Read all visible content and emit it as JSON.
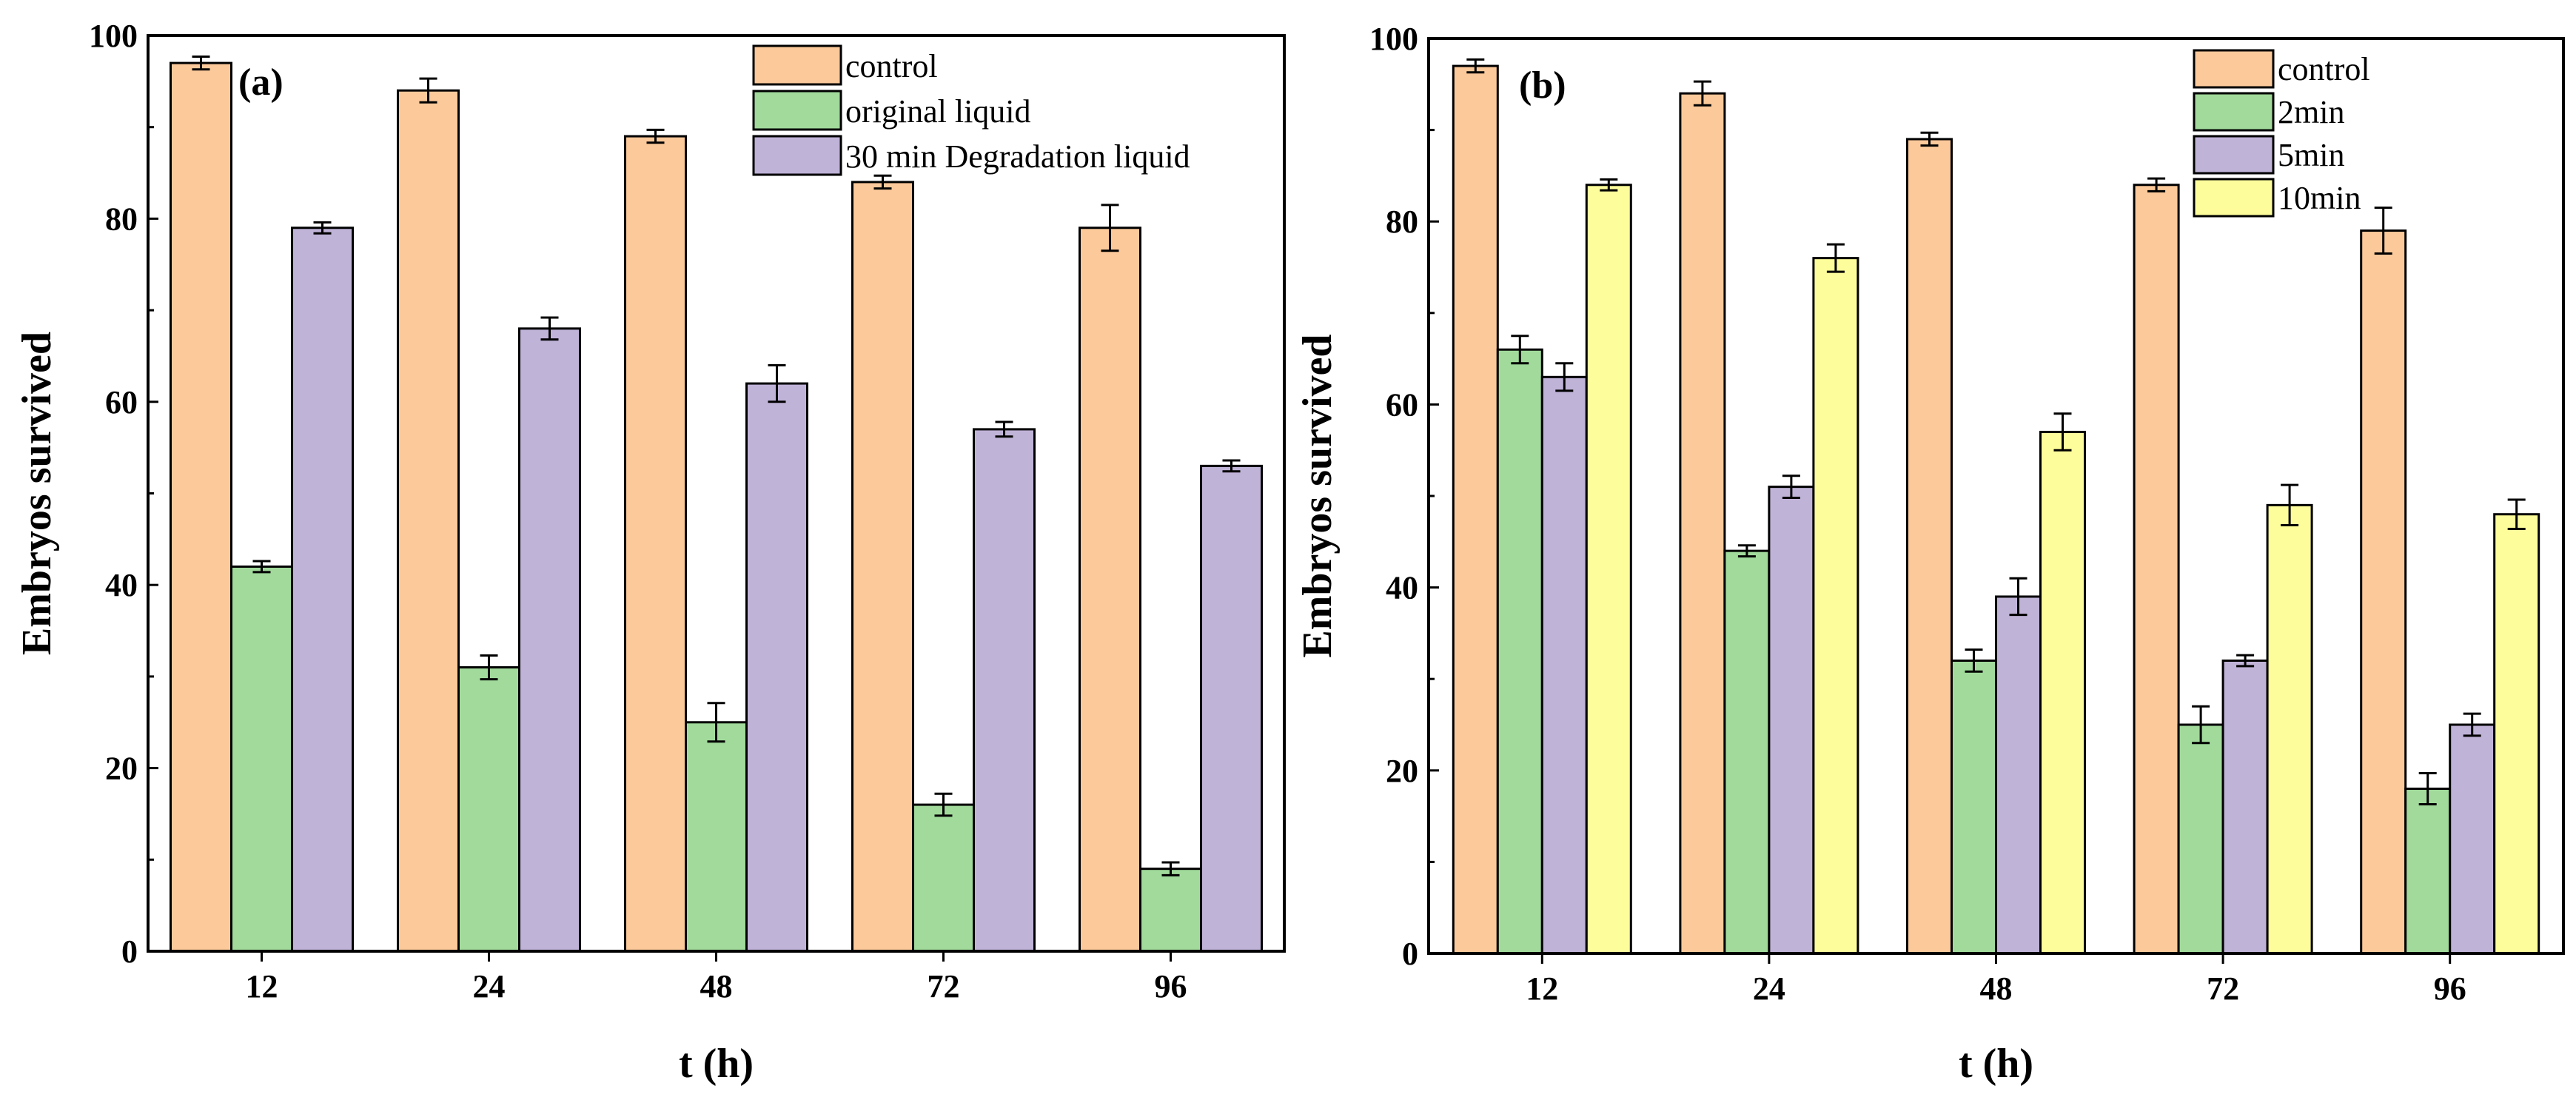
{
  "chart_data": [
    {
      "type": "bar",
      "panel_label": "(a)",
      "categories": [
        "12",
        "24",
        "48",
        "72",
        "96"
      ],
      "xlabel": "t (h)",
      "ylabel": "Embryos survived",
      "ylim": [
        0,
        100
      ],
      "yticks": [
        "0",
        "20",
        "40",
        "60",
        "80",
        "100"
      ],
      "legend_position": "top-right",
      "series": [
        {
          "name": "control",
          "color": "#FBC99A",
          "values": [
            97,
            94,
            89,
            84,
            79
          ],
          "errors": [
            0.7,
            1.3,
            0.7,
            0.7,
            2.5
          ]
        },
        {
          "name": "original liquid",
          "color": "#A1DA9B",
          "values": [
            42,
            31,
            25,
            16,
            9
          ],
          "errors": [
            0.6,
            1.3,
            2.1,
            1.2,
            0.7
          ]
        },
        {
          "name": "30 min Degradation liquid",
          "color": "#C0B3D8",
          "values": [
            79,
            68,
            62,
            57,
            53
          ],
          "errors": [
            0.6,
            1.2,
            2.0,
            0.8,
            0.6
          ]
        }
      ]
    },
    {
      "type": "bar",
      "panel_label": "(b)",
      "categories": [
        "12",
        "24",
        "48",
        "72",
        "96"
      ],
      "xlabel": "t (h)",
      "ylabel": "Embryos survived",
      "ylim": [
        0,
        100
      ],
      "yticks": [
        "0",
        "20",
        "40",
        "60",
        "80",
        "100"
      ],
      "legend_position": "top-right",
      "series": [
        {
          "name": "control",
          "color": "#FBC99A",
          "values": [
            97,
            94,
            89,
            84,
            79
          ],
          "errors": [
            0.7,
            1.3,
            0.7,
            0.7,
            2.5
          ]
        },
        {
          "name": "2min",
          "color": "#A1DA9B",
          "values": [
            66,
            44,
            32,
            25,
            18
          ],
          "errors": [
            1.5,
            0.6,
            1.2,
            2.0,
            1.7
          ]
        },
        {
          "name": "5min",
          "color": "#C0B3D8",
          "values": [
            63,
            51,
            39,
            32,
            25
          ],
          "errors": [
            1.5,
            1.2,
            2.0,
            0.6,
            1.2
          ]
        },
        {
          "name": "10min",
          "color": "#FDFD9B",
          "values": [
            84,
            76,
            57,
            49,
            48
          ],
          "errors": [
            0.6,
            1.5,
            2.0,
            2.2,
            1.6
          ]
        }
      ]
    }
  ]
}
